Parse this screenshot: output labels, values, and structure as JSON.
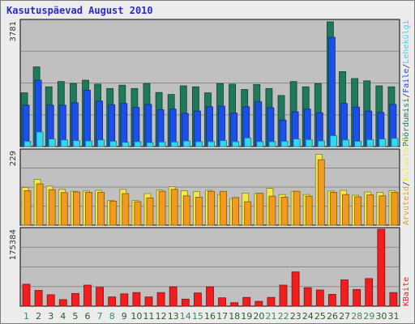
{
  "title": "Kasutuspäevad August 2010",
  "colors": {
    "weekday_label": "#2c5a2c",
    "weekend_label": "#3c8a5a",
    "pages": "#1e7a5a",
    "files": "#1c4ee8",
    "hits": "#33d8f0",
    "visits": "#f2e84a",
    "sites": "#f09a1e",
    "kbytes": "#f01e1e"
  },
  "chart_data": [
    {
      "type": "bar",
      "ymax_label": "3781",
      "ylim": [
        0,
        3781
      ],
      "legend_order": [
        "Pöördumisi",
        "Faile",
        "Lehekülgi"
      ],
      "legend_separator": "/",
      "categories": [
        "1",
        "2",
        "3",
        "4",
        "5",
        "6",
        "7",
        "8",
        "9",
        "10",
        "11",
        "12",
        "13",
        "14",
        "15",
        "16",
        "17",
        "18",
        "19",
        "20",
        "21",
        "22",
        "23",
        "24",
        "25",
        "26",
        "27",
        "28",
        "29",
        "30",
        "31"
      ],
      "weekend_days": [
        "1",
        "7",
        "8",
        "14",
        "15",
        "21",
        "22",
        "28",
        "29"
      ],
      "series": [
        {
          "name": "Pöördumisi",
          "color_key": "pages",
          "values": [
            1620,
            2400,
            1800,
            1960,
            1900,
            2000,
            1880,
            1750,
            1850,
            1750,
            1900,
            1630,
            1570,
            1830,
            1800,
            1620,
            1900,
            1880,
            1720,
            1870,
            1750,
            1540,
            1960,
            1800,
            1900,
            3760,
            2260,
            2050,
            1980,
            1830,
            1800
          ]
        },
        {
          "name": "Faile",
          "color_key": "files",
          "values": [
            1250,
            2000,
            1250,
            1250,
            1320,
            1700,
            1370,
            1260,
            1300,
            1180,
            1270,
            1110,
            1130,
            1000,
            1070,
            1200,
            1220,
            1010,
            1200,
            1350,
            1170,
            800,
            1050,
            1130,
            1020,
            3290,
            1300,
            1190,
            1070,
            1030,
            1270
          ]
        },
        {
          "name": "Lehekülgi",
          "color_key": "hits",
          "values": [
            160,
            440,
            230,
            200,
            180,
            170,
            200,
            160,
            130,
            150,
            120,
            140,
            140,
            170,
            150,
            150,
            180,
            150,
            260,
            150,
            150,
            160,
            230,
            210,
            170,
            330,
            200,
            160,
            210,
            230,
            250
          ]
        }
      ]
    },
    {
      "type": "bar",
      "ymax_label": "229",
      "ylim": [
        0,
        229
      ],
      "legend_order": [
        "Arvuteid",
        "Külastusi"
      ],
      "legend_separator": "/",
      "categories": [
        "1",
        "2",
        "3",
        "4",
        "5",
        "6",
        "7",
        "8",
        "9",
        "10",
        "11",
        "12",
        "13",
        "14",
        "15",
        "16",
        "17",
        "18",
        "19",
        "20",
        "21",
        "22",
        "23",
        "24",
        "25",
        "26",
        "27",
        "28",
        "29",
        "30",
        "31"
      ],
      "series": [
        {
          "name": "Külastusi",
          "color_key": "visits",
          "values": [
            116,
            141,
            120,
            110,
            104,
            105,
            107,
            76,
            110,
            76,
            97,
            108,
            118,
            106,
            103,
            107,
            94,
            82,
            98,
            97,
            113,
            94,
            104,
            94,
            218,
            105,
            107,
            92,
            102,
            101,
            106
          ]
        },
        {
          "name": "Arvuteid",
          "color_key": "sites",
          "values": [
            106,
            127,
            109,
            100,
            102,
            101,
            101,
            74,
            97,
            72,
            84,
            104,
            110,
            90,
            86,
            104,
            104,
            85,
            72,
            98,
            89,
            86,
            104,
            89,
            201,
            101,
            94,
            87,
            93,
            90,
            101
          ]
        }
      ]
    },
    {
      "type": "bar",
      "ymax_label": "175384",
      "ylim": [
        0,
        175384
      ],
      "legend_order": [
        "KBaite"
      ],
      "categories": [
        "1",
        "2",
        "3",
        "4",
        "5",
        "6",
        "7",
        "8",
        "9",
        "10",
        "11",
        "12",
        "13",
        "14",
        "15",
        "16",
        "17",
        "18",
        "19",
        "20",
        "21",
        "22",
        "23",
        "24",
        "25",
        "26",
        "27",
        "28",
        "29",
        "30",
        "31"
      ],
      "series": [
        {
          "name": "KBaite",
          "color_key": "kbytes",
          "values": [
            50000,
            36000,
            26000,
            15000,
            29000,
            48000,
            43000,
            21000,
            28000,
            31000,
            21000,
            31000,
            44000,
            16000,
            30000,
            44000,
            19000,
            8000,
            20000,
            11000,
            20000,
            48000,
            78000,
            42000,
            37000,
            27000,
            60000,
            38000,
            63000,
            175384,
            31000
          ]
        }
      ]
    }
  ]
}
